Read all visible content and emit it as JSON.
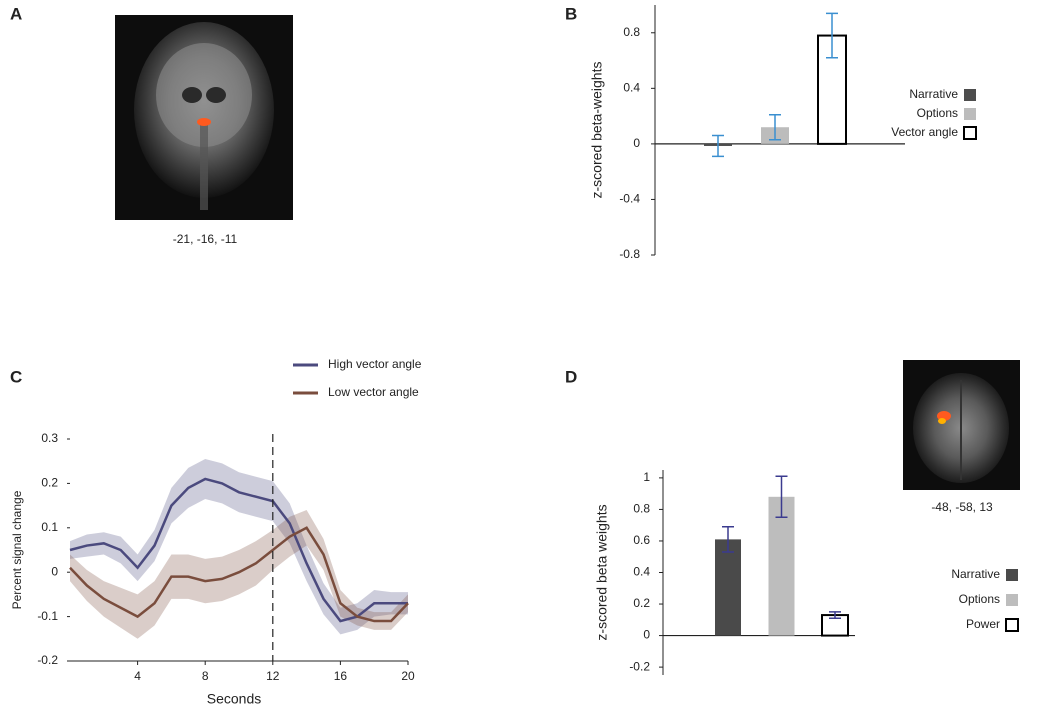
{
  "panel_labels": [
    "A",
    "B",
    "C",
    "D"
  ],
  "image_captions": [
    "-21, -16, -11",
    "-48, -58, 13"
  ],
  "chart_data": [
    {
      "type": "bar",
      "ylabel": "z-scored beta-weights",
      "categories": [
        "Narrative",
        "Options",
        "Vector angle"
      ],
      "values": [
        -0.015,
        0.12,
        0.78
      ],
      "errors": [
        0.075,
        0.09,
        0.16
      ],
      "colors": [
        "#4d4d4d",
        "#bcbcbc",
        "#ffffff"
      ],
      "error_color": "#3a8fd0",
      "ylim": [
        -0.8,
        1.0
      ],
      "yticks": [
        -0.8,
        -0.4,
        0,
        0.4,
        0.8
      ]
    },
    {
      "type": "line",
      "xlabel": "Seconds",
      "ylabel": "Percent signal change",
      "x": [
        0,
        1,
        2,
        3,
        4,
        5,
        6,
        7,
        8,
        9,
        10,
        11,
        12,
        13,
        14,
        15,
        16,
        17,
        18,
        19,
        20
      ],
      "series": [
        {
          "name": "High vector angle",
          "color": "#4b4a7e",
          "values": [
            0.05,
            0.06,
            0.065,
            0.05,
            0.01,
            0.06,
            0.15,
            0.19,
            0.21,
            0.2,
            0.18,
            0.17,
            0.16,
            0.11,
            0.02,
            -0.06,
            -0.11,
            -0.1,
            -0.07,
            -0.07,
            -0.07
          ],
          "errors": [
            0.02,
            0.025,
            0.025,
            0.03,
            0.03,
            0.035,
            0.04,
            0.045,
            0.045,
            0.045,
            0.045,
            0.045,
            0.045,
            0.045,
            0.04,
            0.035,
            0.03,
            0.03,
            0.03,
            0.025,
            0.025
          ]
        },
        {
          "name": "Low vector angle",
          "color": "#7a4d3d",
          "values": [
            0.01,
            -0.03,
            -0.06,
            -0.08,
            -0.1,
            -0.07,
            -0.01,
            -0.01,
            -0.02,
            -0.015,
            0.0,
            0.02,
            0.05,
            0.08,
            0.1,
            0.04,
            -0.07,
            -0.1,
            -0.11,
            -0.11,
            -0.07
          ],
          "errors": [
            0.03,
            0.035,
            0.04,
            0.045,
            0.05,
            0.05,
            0.05,
            0.05,
            0.05,
            0.05,
            0.05,
            0.05,
            0.045,
            0.045,
            0.04,
            0.035,
            0.03,
            0.02,
            0.02,
            0.02,
            0.02
          ]
        }
      ],
      "vline": 12,
      "xlim": [
        0,
        20
      ],
      "xticks": [
        4,
        8,
        12,
        16,
        20
      ],
      "ylim": [
        -0.2,
        0.3
      ],
      "yticks": [
        -0.2,
        -0.1,
        0,
        0.1,
        0.2,
        0.3
      ]
    },
    {
      "type": "bar",
      "ylabel": "z-scored beta weights",
      "categories": [
        "Narrative",
        "Options",
        "Power"
      ],
      "values": [
        0.61,
        0.88,
        0.13
      ],
      "errors": [
        0.08,
        0.13,
        0.02
      ],
      "colors": [
        "#4a4a4a",
        "#bdbdbd",
        "#ffffff"
      ],
      "error_color": "#3b3b8f",
      "ylim": [
        -0.25,
        1.05
      ],
      "yticks": [
        -0.2,
        0,
        0.2,
        0.4,
        0.6,
        0.8,
        1
      ]
    }
  ]
}
